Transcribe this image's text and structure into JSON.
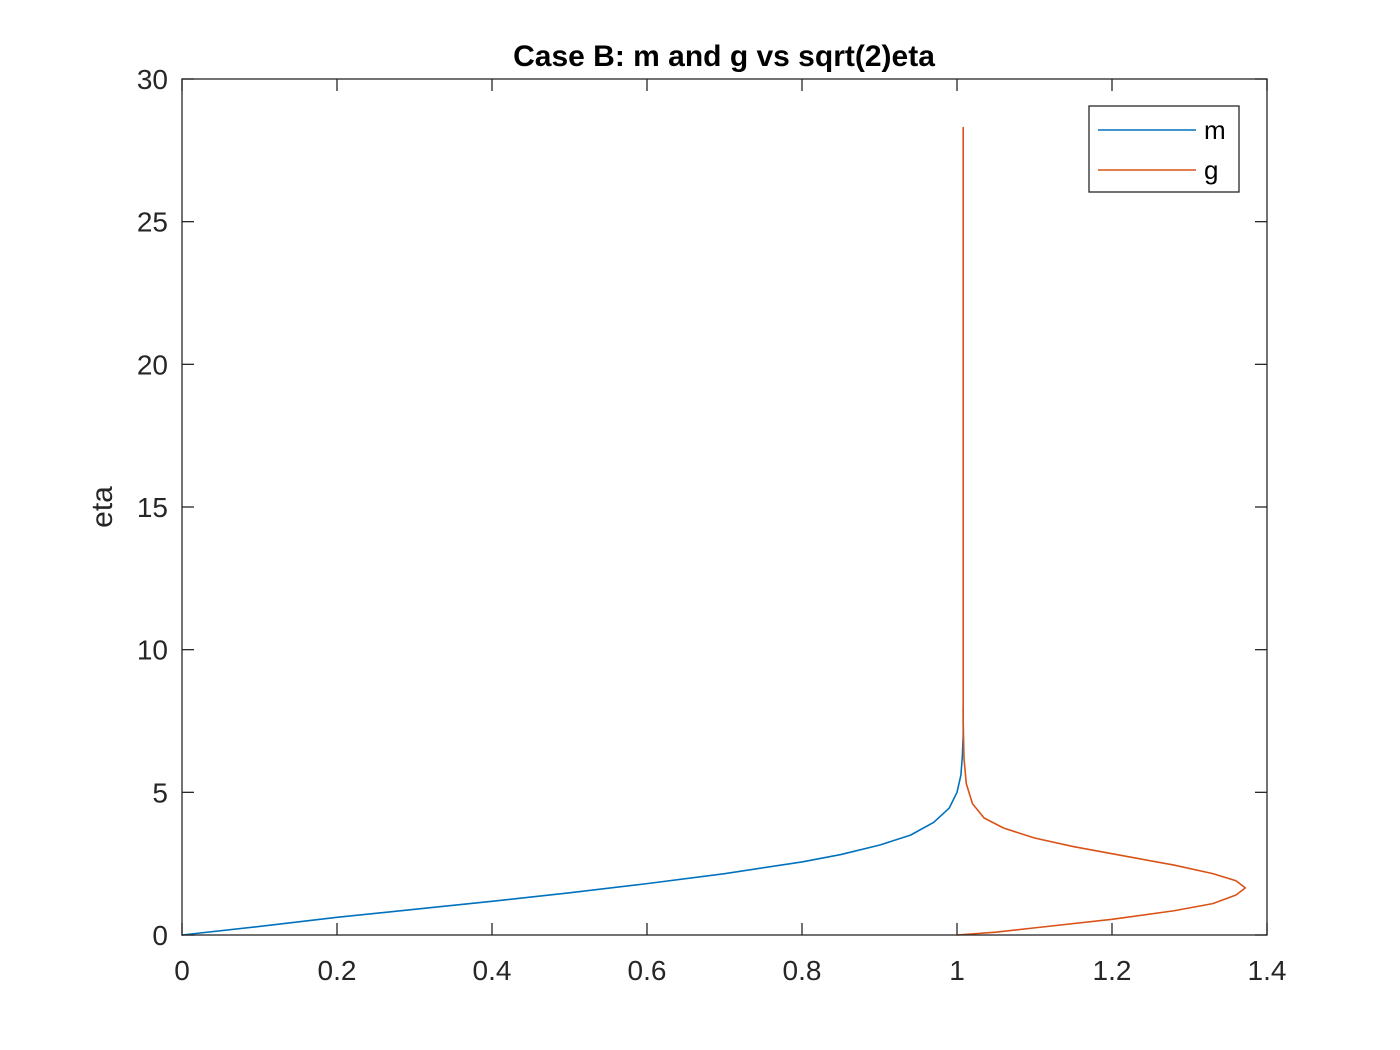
{
  "chart_data": {
    "type": "line",
    "title": "Case B: m and g vs sqrt(2)eta",
    "xlabel": "",
    "ylabel": "eta",
    "xlim": [
      0,
      1.4
    ],
    "ylim": [
      0,
      30
    ],
    "xticks": [
      0,
      0.2,
      0.4,
      0.6,
      0.8,
      1,
      1.2,
      1.4
    ],
    "xtick_labels": [
      "0",
      "0.2",
      "0.4",
      "0.6",
      "0.8",
      "1",
      "1.2",
      "1.4"
    ],
    "yticks": [
      0,
      5,
      10,
      15,
      20,
      25,
      30
    ],
    "ytick_labels": [
      "0",
      "5",
      "10",
      "15",
      "20",
      "25",
      "30"
    ],
    "grid": false,
    "legend_position": "top-right",
    "series": [
      {
        "name": "m",
        "color": "#0072BD",
        "points": [
          [
            0,
            0
          ],
          [
            0.1,
            0.3
          ],
          [
            0.2,
            0.62
          ],
          [
            0.3,
            0.9
          ],
          [
            0.4,
            1.18
          ],
          [
            0.5,
            1.48
          ],
          [
            0.6,
            1.8
          ],
          [
            0.7,
            2.15
          ],
          [
            0.8,
            2.56
          ],
          [
            0.85,
            2.82
          ],
          [
            0.9,
            3.15
          ],
          [
            0.94,
            3.5
          ],
          [
            0.97,
            3.95
          ],
          [
            0.99,
            4.45
          ],
          [
            1.0,
            5.0
          ],
          [
            1.005,
            5.6
          ],
          [
            1.007,
            6.3
          ],
          [
            1.008,
            7.0
          ],
          [
            1.008,
            8.0
          ]
        ]
      },
      {
        "name": "g",
        "color": "#D95319",
        "points": [
          [
            1.0,
            0
          ],
          [
            1.05,
            0.1
          ],
          [
            1.1,
            0.25
          ],
          [
            1.2,
            0.55
          ],
          [
            1.28,
            0.85
          ],
          [
            1.33,
            1.1
          ],
          [
            1.36,
            1.4
          ],
          [
            1.372,
            1.65
          ],
          [
            1.36,
            1.9
          ],
          [
            1.33,
            2.15
          ],
          [
            1.28,
            2.45
          ],
          [
            1.22,
            2.75
          ],
          [
            1.15,
            3.1
          ],
          [
            1.1,
            3.4
          ],
          [
            1.06,
            3.75
          ],
          [
            1.035,
            4.1
          ],
          [
            1.02,
            4.6
          ],
          [
            1.012,
            5.3
          ],
          [
            1.009,
            6.2
          ],
          [
            1.008,
            7.5
          ],
          [
            1.008,
            10
          ],
          [
            1.008,
            15
          ],
          [
            1.008,
            20
          ],
          [
            1.008,
            25
          ],
          [
            1.008,
            28.3
          ]
        ]
      }
    ]
  }
}
